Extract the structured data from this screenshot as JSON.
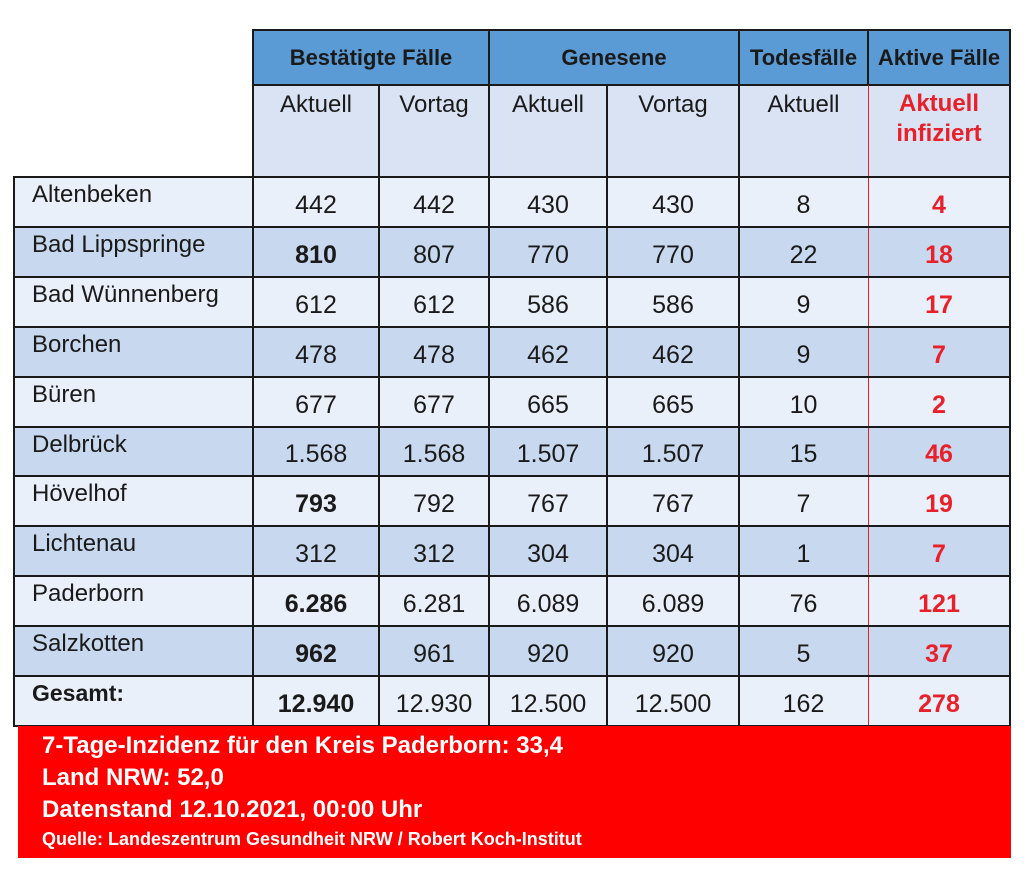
{
  "header": {
    "confirmed": "Bestätigte Fälle",
    "recovered": "Genesene",
    "deaths": "Todesfälle",
    "active": "Aktive Fälle"
  },
  "subheader": {
    "confirmed_current": "Aktuell",
    "confirmed_previous": "Vortag",
    "recovered_current": "Aktuell",
    "recovered_previous": "Vortag",
    "deaths_current": "Aktuell",
    "active_line1": "Aktuell",
    "active_line2": "infiziert"
  },
  "rows": [
    {
      "name": "Altenbeken",
      "confirmed": "442",
      "confirmed_prev": "442",
      "recovered": "430",
      "recovered_prev": "430",
      "deaths": "8",
      "active": "4"
    },
    {
      "name": "Bad Lippspringe",
      "confirmed": "810",
      "confirmed_prev": "807",
      "recovered": "770",
      "recovered_prev": "770",
      "deaths": "22",
      "active": "18"
    },
    {
      "name": "Bad Wünnenberg",
      "confirmed": "612",
      "confirmed_prev": "612",
      "recovered": "586",
      "recovered_prev": "586",
      "deaths": "9",
      "active": "17"
    },
    {
      "name": "Borchen",
      "confirmed": "478",
      "confirmed_prev": "478",
      "recovered": "462",
      "recovered_prev": "462",
      "deaths": "9",
      "active": "7"
    },
    {
      "name": "Büren",
      "confirmed": "677",
      "confirmed_prev": "677",
      "recovered": "665",
      "recovered_prev": "665",
      "deaths": "10",
      "active": "2"
    },
    {
      "name": "Delbrück",
      "confirmed": "1.568",
      "confirmed_prev": "1.568",
      "recovered": "1.507",
      "recovered_prev": "1.507",
      "deaths": "15",
      "active": "46"
    },
    {
      "name": "Hövelhof",
      "confirmed": "793",
      "confirmed_prev": "792",
      "recovered": "767",
      "recovered_prev": "767",
      "deaths": "7",
      "active": "19"
    },
    {
      "name": "Lichtenau",
      "confirmed": "312",
      "confirmed_prev": "312",
      "recovered": "304",
      "recovered_prev": "304",
      "deaths": "1",
      "active": "7"
    },
    {
      "name": "Paderborn",
      "confirmed": "6.286",
      "confirmed_prev": "6.281",
      "recovered": "6.089",
      "recovered_prev": "6.089",
      "deaths": "76",
      "active": "121"
    },
    {
      "name": "Salzkotten",
      "confirmed": "962",
      "confirmed_prev": "961",
      "recovered": "920",
      "recovered_prev": "920",
      "deaths": "5",
      "active": "37"
    }
  ],
  "total": {
    "name": "Gesamt:",
    "confirmed": "12.940",
    "confirmed_prev": "12.930",
    "recovered": "12.500",
    "recovered_prev": "12.500",
    "deaths": "162",
    "active": "278"
  },
  "bold_confirmed_rows": [
    1,
    6,
    8,
    9
  ],
  "footer": {
    "incidence": "7-Tage-Inzidenz für den Kreis Paderborn: 33,4",
    "state": "Land NRW: 52,0",
    "date": "Datenstand 12.10.2021, 00:00 Uhr",
    "source": "Quelle: Landeszentrum Gesundheit NRW / Robert Koch-Institut"
  },
  "colors": {
    "header_blue": "#5b9bd5",
    "row_light": "#eaf0fa",
    "row_dark": "#c8d8ee",
    "active_red": "#e8202a",
    "footer_red": "#ff0000"
  }
}
